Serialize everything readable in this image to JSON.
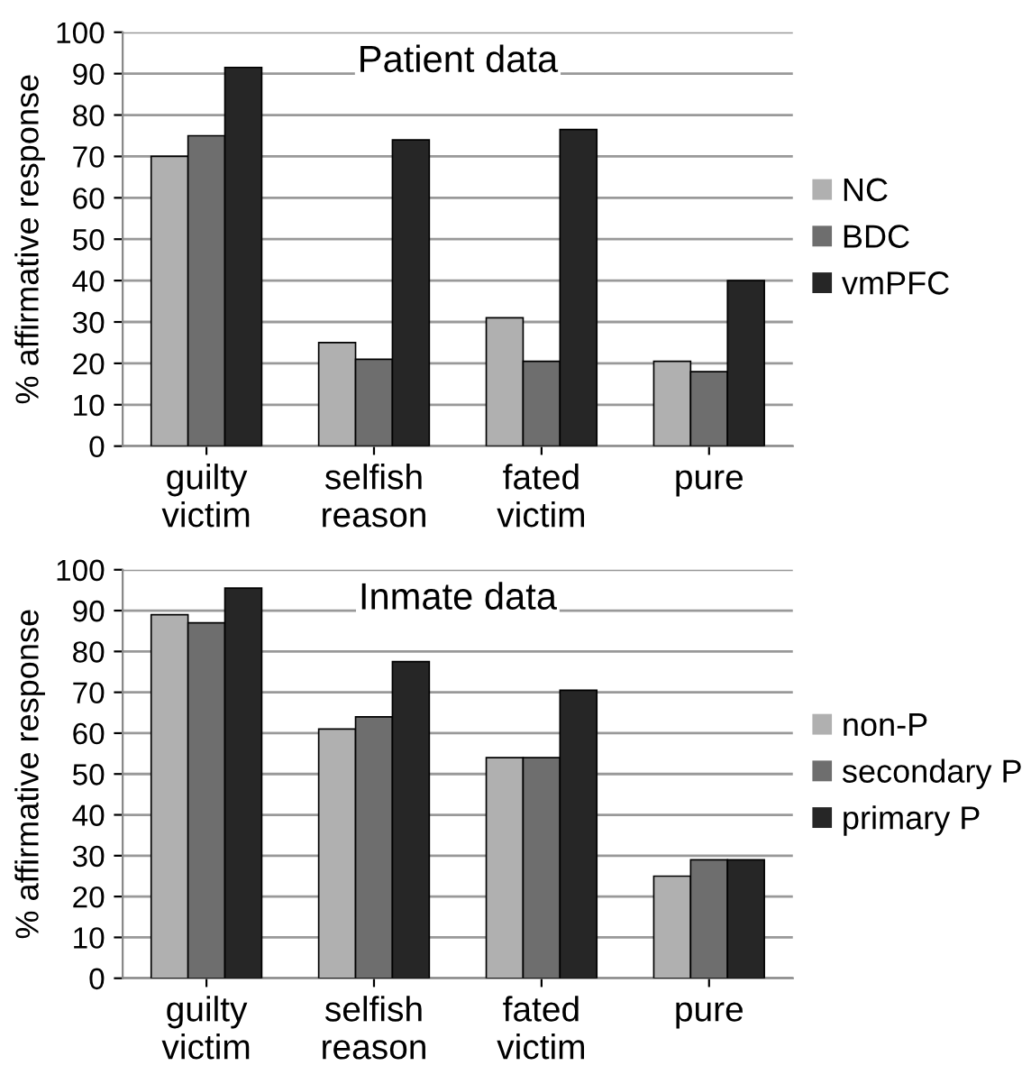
{
  "chart_data": [
    {
      "type": "bar",
      "title": "Patient data",
      "ylabel": "% affirmative response",
      "categories": [
        "guilty\nvictim",
        "selfish\nreason",
        "fated\nvictim",
        "pure"
      ],
      "series": [
        {
          "name": "NC",
          "color": "#b0b0b0",
          "values": [
            70,
            25,
            31,
            20.5
          ]
        },
        {
          "name": "BDC",
          "color": "#6e6e6e",
          "values": [
            75,
            21,
            20.5,
            18
          ]
        },
        {
          "name": "vmPFC",
          "color": "#262626",
          "values": [
            91.5,
            74,
            76.5,
            40
          ]
        }
      ],
      "ylim": [
        0,
        100
      ],
      "yticks": [
        0,
        10,
        20,
        30,
        40,
        50,
        60,
        70,
        80,
        90,
        100
      ],
      "grid": "y",
      "legend": "right"
    },
    {
      "type": "bar",
      "title": "Inmate data",
      "ylabel": "% affirmative response",
      "categories": [
        "guilty\nvictim",
        "selfish\nreason",
        "fated\nvictim",
        "pure"
      ],
      "series": [
        {
          "name": "non-P",
          "color": "#b0b0b0",
          "values": [
            89,
            61,
            54,
            25
          ]
        },
        {
          "name": "secondary P",
          "color": "#6e6e6e",
          "values": [
            87,
            64,
            54,
            29
          ]
        },
        {
          "name": "primary P",
          "color": "#262626",
          "values": [
            95.5,
            77.5,
            70.5,
            29
          ]
        }
      ],
      "ylim": [
        0,
        100
      ],
      "yticks": [
        0,
        10,
        20,
        30,
        40,
        50,
        60,
        70,
        80,
        90,
        100
      ],
      "grid": "y",
      "legend": "right"
    }
  ]
}
